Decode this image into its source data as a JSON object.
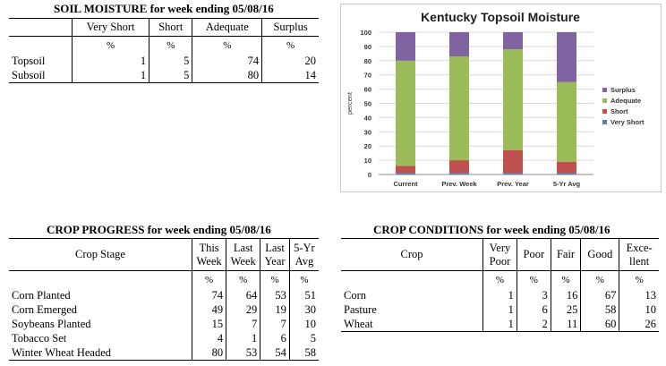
{
  "soil": {
    "title": "SOIL MOISTURE for week ending 05/08/16",
    "headers": [
      "Very Short",
      "Short",
      "Adequate",
      "Surplus"
    ],
    "unit": "%",
    "rows": [
      {
        "label": "Topsoil",
        "values": [
          "1",
          "5",
          "74",
          "20"
        ]
      },
      {
        "label": "Subsoil",
        "values": [
          "1",
          "5",
          "80",
          "14"
        ]
      }
    ]
  },
  "chart_data": {
    "type": "bar",
    "stacked": true,
    "title": "Kentucky Topsoil Moisture",
    "ylabel": "percent",
    "xlabel": "",
    "ylim": [
      0,
      100
    ],
    "yticks": [
      0,
      10,
      20,
      30,
      40,
      50,
      60,
      70,
      80,
      90,
      100
    ],
    "categories": [
      "Current",
      "Prev. Week",
      "Prev. Year",
      "5-Yr Avg"
    ],
    "series": [
      {
        "name": "Very Short",
        "color": "#4f81bd",
        "values": [
          1,
          1,
          1,
          1
        ]
      },
      {
        "name": "Short",
        "color": "#c0504d",
        "values": [
          5,
          9,
          16,
          8
        ]
      },
      {
        "name": "Adequate",
        "color": "#9bbb59",
        "values": [
          74,
          73,
          71,
          56
        ]
      },
      {
        "name": "Surplus",
        "color": "#8064a2",
        "values": [
          20,
          17,
          12,
          35
        ]
      }
    ],
    "legend_position": "right"
  },
  "progress": {
    "title": "CROP PROGRESS for week ending 05/08/16",
    "header_stage": "Crop Stage",
    "headers": [
      [
        "This",
        "Week"
      ],
      [
        "Last",
        "Week"
      ],
      [
        "Last",
        "Year"
      ],
      [
        "5-Yr",
        "Avg"
      ]
    ],
    "unit": "%",
    "rows": [
      {
        "label": "Corn Planted",
        "values": [
          "74",
          "64",
          "53",
          "51"
        ]
      },
      {
        "label": "Corn Emerged",
        "values": [
          "49",
          "29",
          "19",
          "30"
        ]
      },
      {
        "label": "Soybeans Planted",
        "values": [
          "15",
          "7",
          "7",
          "10"
        ]
      },
      {
        "label": "Tobacco Set",
        "values": [
          "4",
          "1",
          "6",
          "5"
        ]
      },
      {
        "label": "Winter Wheat Headed",
        "values": [
          "80",
          "53",
          "54",
          "58"
        ]
      }
    ]
  },
  "conditions": {
    "title": "CROP CONDITIONS for week ending 05/08/16",
    "header_crop": "Crop",
    "headers": [
      [
        "Very",
        "Poor"
      ],
      [
        "Poor"
      ],
      [
        "Fair"
      ],
      [
        "Good"
      ],
      [
        "Exce-",
        "llent"
      ]
    ],
    "unit": "%",
    "rows": [
      {
        "label": "Corn",
        "values": [
          "1",
          "3",
          "16",
          "67",
          "13"
        ]
      },
      {
        "label": "Pasture",
        "values": [
          "1",
          "6",
          "25",
          "58",
          "10"
        ]
      },
      {
        "label": "Wheat",
        "values": [
          "1",
          "2",
          "11",
          "60",
          "26"
        ]
      }
    ]
  }
}
